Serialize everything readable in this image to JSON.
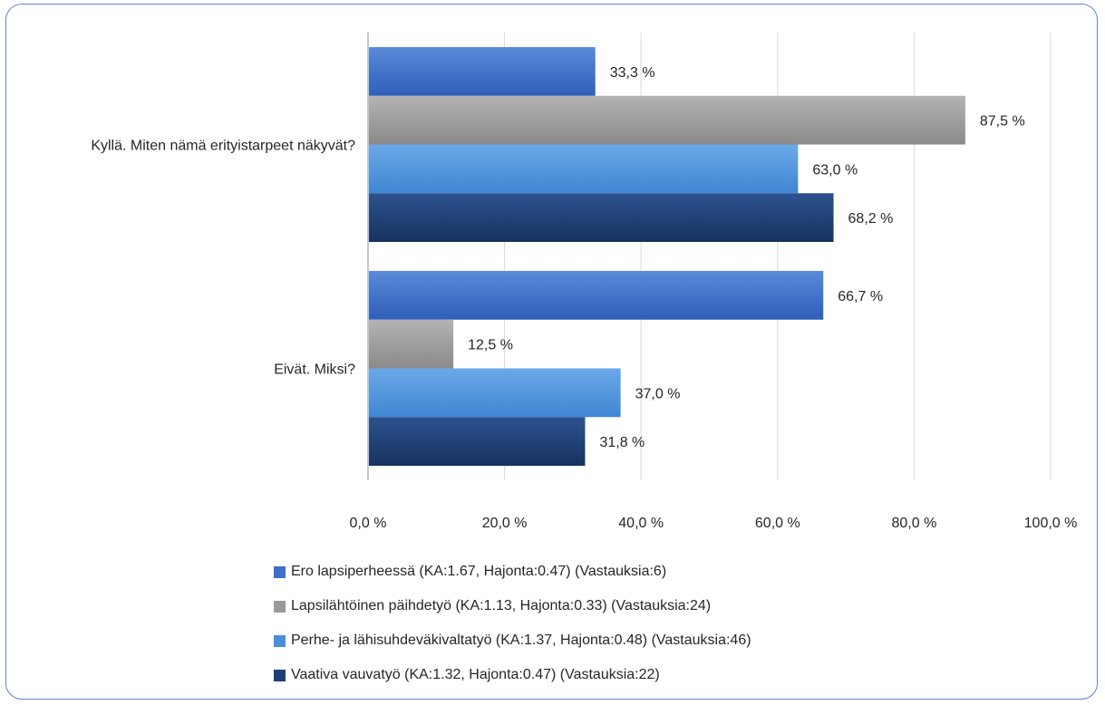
{
  "chart_data": {
    "type": "bar",
    "orientation": "horizontal",
    "categories": [
      "Kyllä. Miten nämä erityistarpeet näkyvät?",
      "Eivät. Miksi?"
    ],
    "series": [
      {
        "name": "Ero lapsiperheessä (KA:1.67, Hajonta:0.47) (Vastauksia:6)",
        "values": [
          33.3,
          66.7
        ],
        "labels": [
          "33,3 %",
          "66,7 %"
        ],
        "color": "#3d6fcb"
      },
      {
        "name": "Lapsilähtöinen päihdetyö (KA:1.13, Hajonta:0.33) (Vastauksia:24)",
        "values": [
          87.5,
          12.5
        ],
        "labels": [
          "87,5 %",
          "12,5 %"
        ],
        "color": "#9a9a9a"
      },
      {
        "name": "Perhe- ja lähisuhdeväkivaltatyö (KA:1.37, Hajonta:0.48) (Vastauksia:46)",
        "values": [
          63.0,
          37.0
        ],
        "labels": [
          "63,0 %",
          "37,0 %"
        ],
        "color": "#4a90d9"
      },
      {
        "name": "Vaativa vauvatyö (KA:1.32, Hajonta:0.47) (Vastauksia:22)",
        "values": [
          68.2,
          31.8
        ],
        "labels": [
          "68,2 %",
          "31,8 %"
        ],
        "color": "#1f3f78"
      }
    ],
    "xlim": [
      0,
      100
    ],
    "ticks": [
      0,
      20,
      40,
      60,
      80,
      100
    ],
    "tick_labels": [
      "0,0 %",
      "20,0 %",
      "40,0 %",
      "60,0 %",
      "80,0 %",
      "100,0 %"
    ],
    "grid": true,
    "legend_position": "bottom"
  }
}
